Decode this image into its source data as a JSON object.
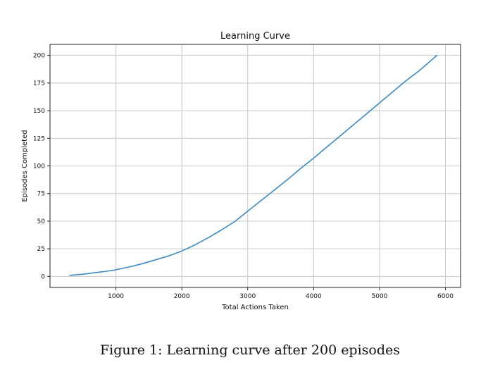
{
  "caption": "Figure 1: Learning curve after 200 episodes",
  "chart_data": {
    "type": "line",
    "title": "Learning Curve",
    "xlabel": "Total Actions Taken",
    "ylabel": "Episodes Completed",
    "xlim": [
      0,
      6230
    ],
    "ylim": [
      -10,
      210
    ],
    "xticks": [
      1000,
      2000,
      3000,
      4000,
      5000,
      6000
    ],
    "yticks": [
      0,
      25,
      50,
      75,
      100,
      125,
      150,
      175,
      200
    ],
    "grid": true,
    "series": [
      {
        "color": "#3b8ac4",
        "x": [
          300,
          500,
          700,
          900,
          1000,
          1200,
          1400,
          1600,
          1800,
          2000,
          2200,
          2400,
          2600,
          2800,
          3000,
          3200,
          3400,
          3600,
          3800,
          4000,
          4200,
          4400,
          4600,
          4800,
          5000,
          5200,
          5400,
          5600,
          5870
        ],
        "y": [
          1,
          2,
          3.5,
          5,
          6,
          8.5,
          11.5,
          15,
          18.5,
          23,
          28.5,
          35,
          42,
          49.5,
          59,
          68.5,
          78,
          87.5,
          97.5,
          107,
          117,
          127,
          137,
          147,
          157,
          167,
          177,
          186,
          200
        ]
      }
    ]
  }
}
